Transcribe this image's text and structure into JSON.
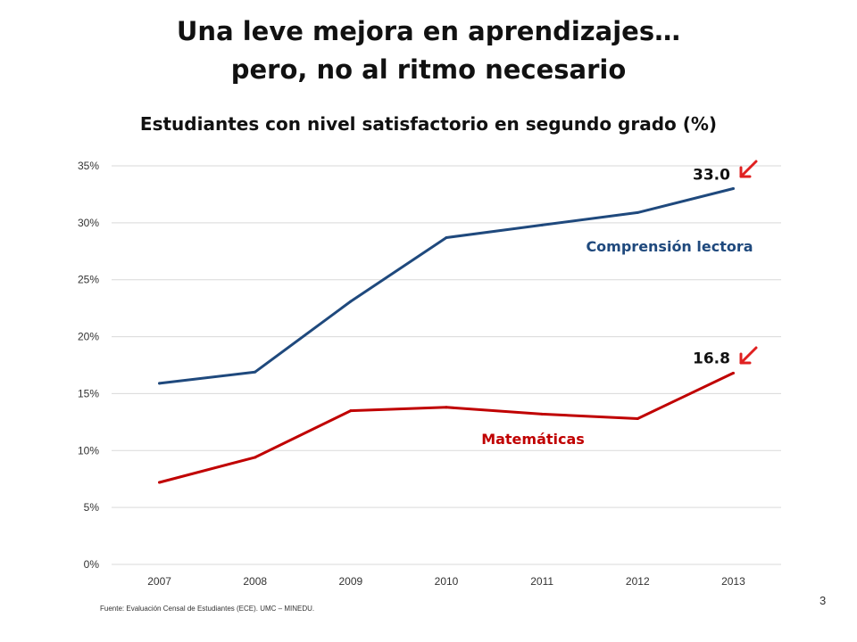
{
  "slide": {
    "title_line1": "Una leve mejora en aprendizajes…",
    "title_line2": "pero, no al ritmo necesario",
    "footnote": "Fuente: Evaluación Censal de Estudiantes (ECE). UMC – MINEDU.",
    "page_number": "3"
  },
  "colors": {
    "reading": "#1F497D",
    "math": "#C00000",
    "arrow": "#E02020",
    "grid": "#D9D9D9",
    "axis_text": "#333333"
  },
  "chart_data": {
    "type": "line",
    "title": "Estudiantes con nivel satisfactorio en segundo grado (%)",
    "xlabel": "",
    "ylabel": "",
    "categories": [
      "2007",
      "2008",
      "2009",
      "2010",
      "2011",
      "2012",
      "2013"
    ],
    "ylim": [
      0,
      35
    ],
    "yticks": [
      0,
      5,
      10,
      15,
      20,
      25,
      30,
      35
    ],
    "ytick_labels": [
      "0%",
      "5%",
      "10%",
      "15%",
      "20%",
      "25%",
      "30%",
      "35%"
    ],
    "grid": true,
    "series": [
      {
        "name": "Comprensión lectora",
        "color": "#1F497D",
        "values": [
          15.9,
          16.9,
          23.1,
          28.7,
          29.8,
          30.9,
          33.0
        ],
        "end_label": "33.0"
      },
      {
        "name": "Matemáticas",
        "color": "#C00000",
        "values": [
          7.2,
          9.4,
          13.5,
          13.8,
          13.2,
          12.8,
          16.8
        ],
        "end_label": "16.8"
      }
    ],
    "annotations": [
      "↙ 33.0",
      "↙ 16.8"
    ]
  }
}
